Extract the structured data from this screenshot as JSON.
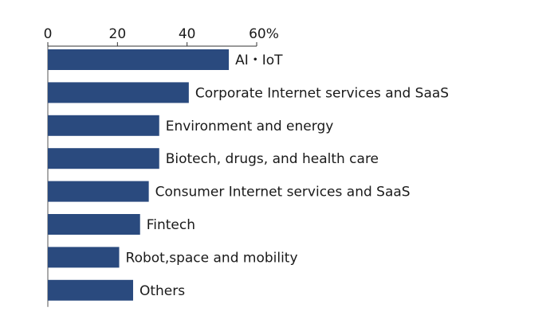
{
  "chart_data": {
    "type": "bar",
    "orientation": "horizontal",
    "categories": [
      "AI・IoT",
      "Corporate Internet services and SaaS",
      "Environment and energy",
      "Biotech, drugs, and health care",
      "Consumer Internet services and SaaS",
      "Fintech",
      "Robot,space and mobility",
      "Others"
    ],
    "values": [
      52,
      40.5,
      32,
      32,
      29,
      26.5,
      20.5,
      24.5
    ],
    "xticks": [
      "0",
      "20",
      "40",
      "60"
    ],
    "xunit": "%",
    "xlim": [
      0,
      60
    ],
    "grid": false,
    "bar_color": "#2a4a7e",
    "label_position": "right-of-bar",
    "axis_position": "top"
  }
}
